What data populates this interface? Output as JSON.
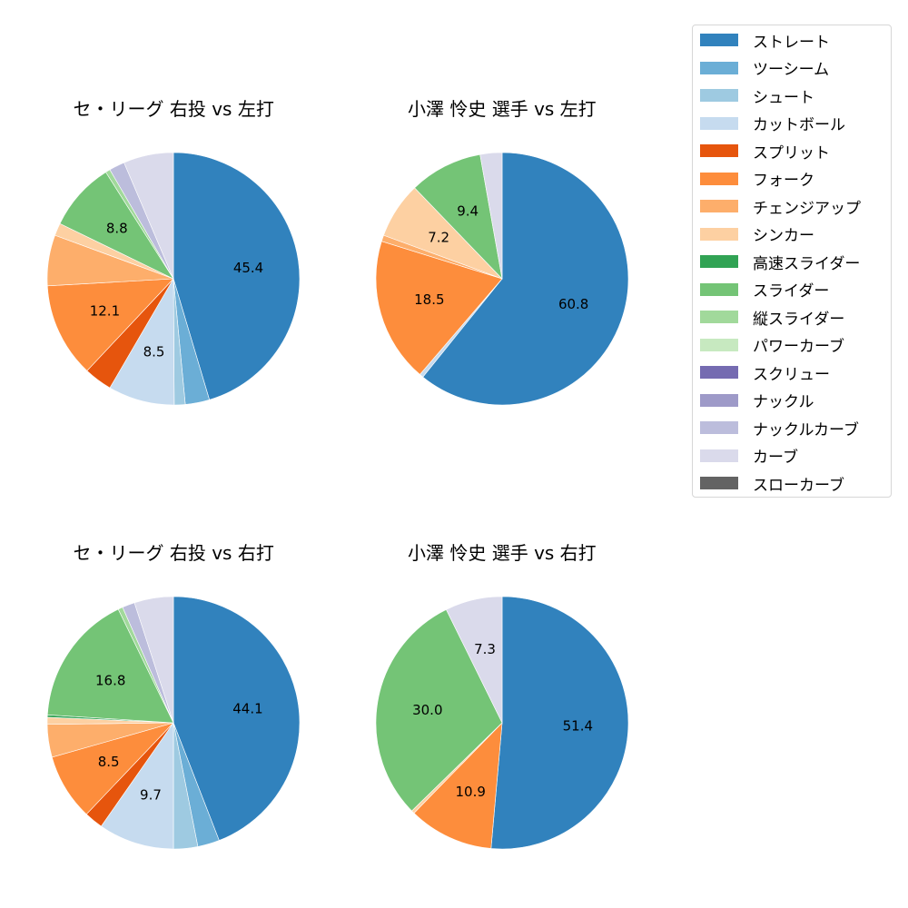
{
  "legend": {
    "items": [
      {
        "label": "ストレート",
        "color": "#3182bd"
      },
      {
        "label": "ツーシーム",
        "color": "#6baed6"
      },
      {
        "label": "シュート",
        "color": "#9ecae1"
      },
      {
        "label": "カットボール",
        "color": "#c6dbef"
      },
      {
        "label": "スプリット",
        "color": "#e6550d"
      },
      {
        "label": "フォーク",
        "color": "#fd8d3c"
      },
      {
        "label": "チェンジアップ",
        "color": "#fdae6b"
      },
      {
        "label": "シンカー",
        "color": "#fdd0a2"
      },
      {
        "label": "高速スライダー",
        "color": "#31a354"
      },
      {
        "label": "スライダー",
        "color": "#74c476"
      },
      {
        "label": "縦スライダー",
        "color": "#a1d99b"
      },
      {
        "label": "パワーカーブ",
        "color": "#c7e9c0"
      },
      {
        "label": "スクリュー",
        "color": "#756bb1"
      },
      {
        "label": "ナックル",
        "color": "#9e9ac8"
      },
      {
        "label": "ナックルカーブ",
        "color": "#bcbddc"
      },
      {
        "label": "カーブ",
        "color": "#dadaeb"
      },
      {
        "label": "スローカーブ",
        "color": "#636363"
      }
    ]
  },
  "chart_data": [
    {
      "type": "pie",
      "title": "セ・リーグ 右投 vs 左打",
      "position": "top-left",
      "start_angle": 90,
      "direction": "clockwise",
      "labels_shown_if_over": 7,
      "slices": [
        {
          "name": "ストレート",
          "value": 45.4
        },
        {
          "name": "ツーシーム",
          "value": 3.1
        },
        {
          "name": "シュート",
          "value": 1.4
        },
        {
          "name": "カットボール",
          "value": 8.5
        },
        {
          "name": "スプリット",
          "value": 3.6
        },
        {
          "name": "フォーク",
          "value": 12.1
        },
        {
          "name": "チェンジアップ",
          "value": 6.5
        },
        {
          "name": "シンカー",
          "value": 1.6
        },
        {
          "name": "スライダー",
          "value": 8.8
        },
        {
          "name": "縦スライダー",
          "value": 0.6
        },
        {
          "name": "ナックルカーブ",
          "value": 2.0
        },
        {
          "name": "カーブ",
          "value": 6.4
        }
      ]
    },
    {
      "type": "pie",
      "title": "小澤 怜史 選手 vs 左打",
      "position": "top-right",
      "start_angle": 90,
      "direction": "clockwise",
      "labels_shown_if_over": 7,
      "slices": [
        {
          "name": "ストレート",
          "value": 60.8
        },
        {
          "name": "カットボール",
          "value": 0.5
        },
        {
          "name": "フォーク",
          "value": 18.5
        },
        {
          "name": "チェンジアップ",
          "value": 0.8
        },
        {
          "name": "シンカー",
          "value": 7.2
        },
        {
          "name": "スライダー",
          "value": 9.4
        },
        {
          "name": "カーブ",
          "value": 2.8
        }
      ]
    },
    {
      "type": "pie",
      "title": "セ・リーグ 右投 vs 右打",
      "position": "bottom-left",
      "start_angle": 90,
      "direction": "clockwise",
      "labels_shown_if_over": 7,
      "slices": [
        {
          "name": "ストレート",
          "value": 44.1
        },
        {
          "name": "ツーシーム",
          "value": 2.8
        },
        {
          "name": "シュート",
          "value": 3.1
        },
        {
          "name": "カットボール",
          "value": 9.7
        },
        {
          "name": "スプリット",
          "value": 2.4
        },
        {
          "name": "フォーク",
          "value": 8.5
        },
        {
          "name": "チェンジアップ",
          "value": 4.2
        },
        {
          "name": "シンカー",
          "value": 0.9
        },
        {
          "name": "高速スライダー",
          "value": 0.3
        },
        {
          "name": "スライダー",
          "value": 16.8
        },
        {
          "name": "縦スライダー",
          "value": 0.6
        },
        {
          "name": "ナックルカーブ",
          "value": 1.6
        },
        {
          "name": "カーブ",
          "value": 5.0
        }
      ]
    },
    {
      "type": "pie",
      "title": "小澤 怜史 選手 vs 右打",
      "position": "bottom-right",
      "start_angle": 90,
      "direction": "clockwise",
      "labels_shown_if_over": 7,
      "slices": [
        {
          "name": "ストレート",
          "value": 51.4
        },
        {
          "name": "フォーク",
          "value": 10.9
        },
        {
          "name": "シンカー",
          "value": 0.4
        },
        {
          "name": "スライダー",
          "value": 30.0
        },
        {
          "name": "カーブ",
          "value": 7.3
        }
      ]
    }
  ]
}
